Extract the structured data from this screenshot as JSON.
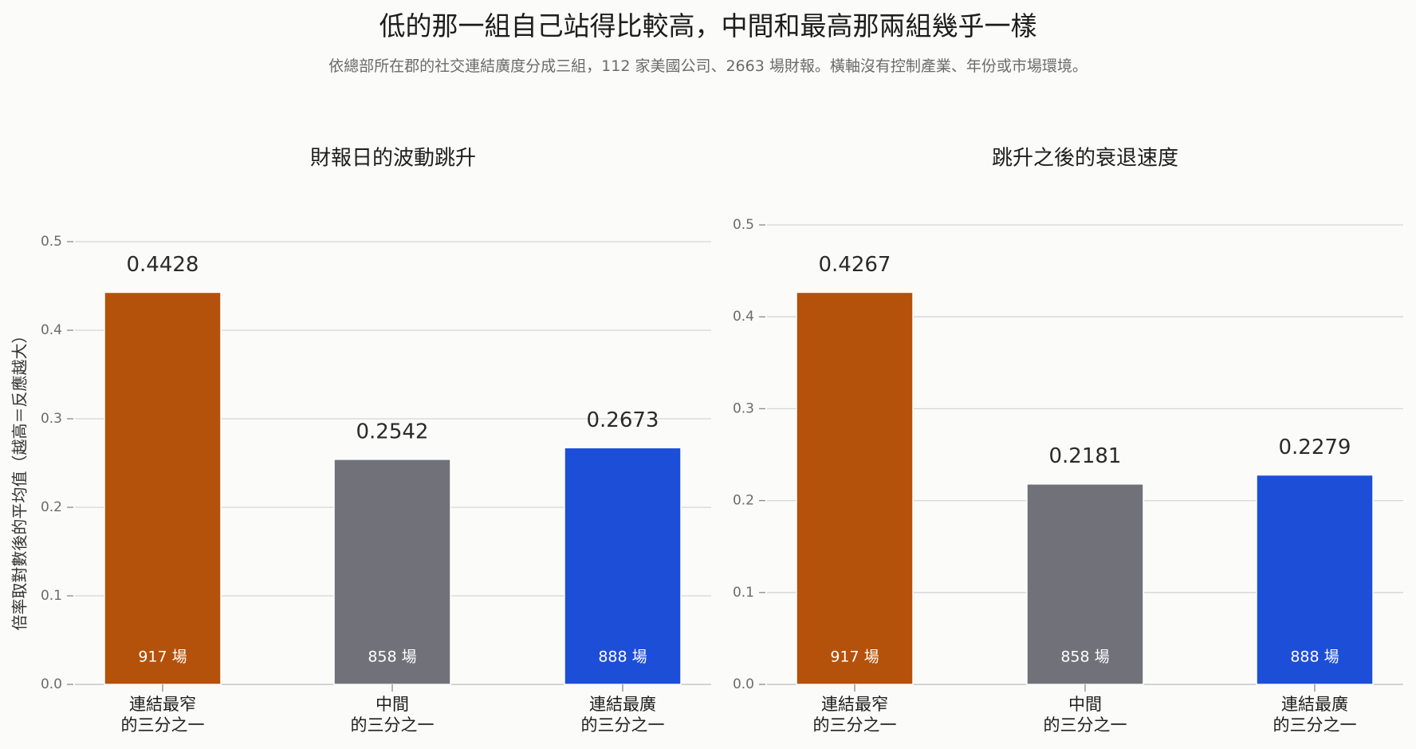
{
  "title": "低的那一組自己站得比較高，中間和最高那兩組幾乎一樣",
  "subtitle": "依總部所在郡的社交連結廣度分成三組，112 家美國公司、2663 場財報。橫軸沒有控制產業、年份或市場環境。",
  "chart_data": [
    {
      "type": "bar",
      "title": "財報日的波動跳升",
      "ylabel": "倍率取對數後的平均值（越高＝反應越大）",
      "xlabel": "",
      "ylim": [
        0,
        0.5
      ],
      "yticks": [
        "0.0",
        "0.1",
        "0.2",
        "0.3",
        "0.4",
        "0.5"
      ],
      "categories": [
        [
          "連結最窄",
          "的三分之一"
        ],
        [
          "中間",
          "的三分之一"
        ],
        [
          "連結最廣",
          "的三分之一"
        ]
      ],
      "values": [
        0.4428,
        0.2542,
        0.2673
      ],
      "value_labels": [
        "0.4428",
        "0.2542",
        "0.2673"
      ],
      "counts": [
        "917 場",
        "858 場",
        "888 場"
      ],
      "colors": [
        "#b4510a",
        "#71717a",
        "#1d4ed8"
      ],
      "grid": true
    },
    {
      "type": "bar",
      "title": "跳升之後的衰退速度",
      "ylabel": "",
      "xlabel": "",
      "ylim": [
        0,
        0.5
      ],
      "yticks": [
        "0.0",
        "0.1",
        "0.2",
        "0.3",
        "0.4",
        "0.5"
      ],
      "categories": [
        [
          "連結最窄",
          "的三分之一"
        ],
        [
          "中間",
          "的三分之一"
        ],
        [
          "連結最廣",
          "的三分之一"
        ]
      ],
      "values": [
        0.4267,
        0.2181,
        0.2279
      ],
      "value_labels": [
        "0.4267",
        "0.2181",
        "0.2279"
      ],
      "counts": [
        "917 場",
        "858 場",
        "888 場"
      ],
      "colors": [
        "#b4510a",
        "#71717a",
        "#1d4ed8"
      ],
      "grid": true
    }
  ]
}
